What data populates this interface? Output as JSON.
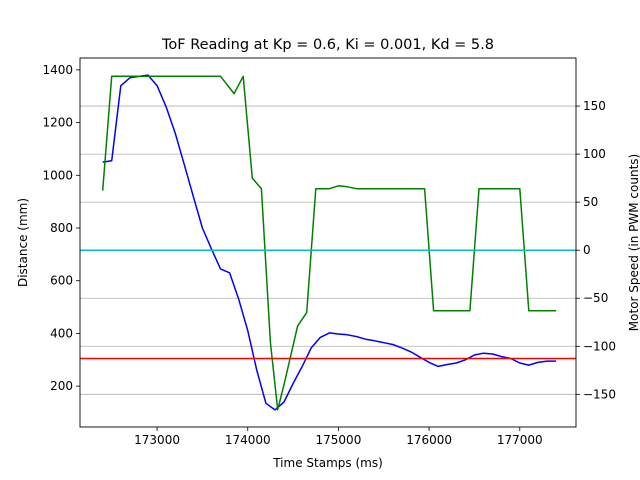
{
  "chart_data": {
    "type": "line",
    "title": "ToF Reading at Kp = 0.6, Ki = 0.001, Kd = 5.8",
    "xlabel": "Time Stamps (ms)",
    "ylabel": "Distance (mm)",
    "ylabel_right": "Motor Speed (in PWM counts)",
    "xlim": [
      172150,
      177620
    ],
    "ylim": [
      45,
      1445
    ],
    "ylim_right": [
      -184,
      200
    ],
    "x_ticks": [
      173000,
      174000,
      175000,
      176000,
      177000
    ],
    "y_ticks": [
      200,
      400,
      600,
      800,
      1000,
      1200,
      1400
    ],
    "y_ticks_right": [
      -150,
      -100,
      -50,
      0,
      50,
      100,
      150
    ],
    "grid": "horizontal lines at right-axis ticks",
    "colors": {
      "distance": "#0000ff",
      "motor": "#008000",
      "setpoint": "#ff0000",
      "zero": "#00bfbf",
      "grid": "#b0b0b0"
    },
    "series": [
      {
        "axis": "left",
        "x": [
          172400,
          172500,
          172600,
          172700,
          172800,
          172900,
          173000,
          173100,
          173200,
          173300,
          173400,
          173500,
          173600,
          173700,
          173800,
          173900,
          174000,
          174100,
          174200,
          174300,
          174400,
          174500,
          174600,
          174700,
          174800,
          174900,
          175000,
          175100,
          175200,
          175300,
          175400,
          175500,
          175600,
          175700,
          175800,
          175900,
          176000,
          176100,
          176200,
          176300,
          176400,
          176500,
          176600,
          176700,
          176800,
          176900,
          177000,
          177100,
          177200,
          177300,
          177400
        ],
        "values": [
          1050,
          1055,
          1340,
          1370,
          1375,
          1380,
          1340,
          1260,
          1160,
          1040,
          920,
          800,
          720,
          645,
          630,
          530,
          410,
          260,
          135,
          110,
          140,
          210,
          275,
          345,
          385,
          402,
          398,
          395,
          388,
          378,
          372,
          365,
          358,
          345,
          330,
          310,
          290,
          275,
          282,
          288,
          300,
          318,
          325,
          322,
          312,
          305,
          288,
          280,
          290,
          295,
          295
        ]
      },
      {
        "axis": "right",
        "x": [
          172400,
          172500,
          172600,
          172800,
          173200,
          173700,
          173850,
          173950,
          174050,
          174150,
          174250,
          174330,
          174400,
          174550,
          174650,
          174750,
          174900,
          175000,
          175100,
          175200,
          175600,
          175950,
          176050,
          176200,
          176450,
          176550,
          176800,
          177000,
          177100,
          177400
        ],
        "values": [
          62,
          181,
          181,
          181,
          181,
          181,
          163,
          181,
          75,
          64,
          -96,
          -166,
          -140,
          -79,
          -65,
          64,
          64,
          67,
          66,
          64,
          64,
          64,
          -63,
          -63,
          -63,
          64,
          64,
          64,
          -63,
          -63
        ]
      }
    ],
    "reference_lines": [
      {
        "axis": "left",
        "value": 305
      },
      {
        "axis": "right",
        "value": 0
      }
    ]
  }
}
